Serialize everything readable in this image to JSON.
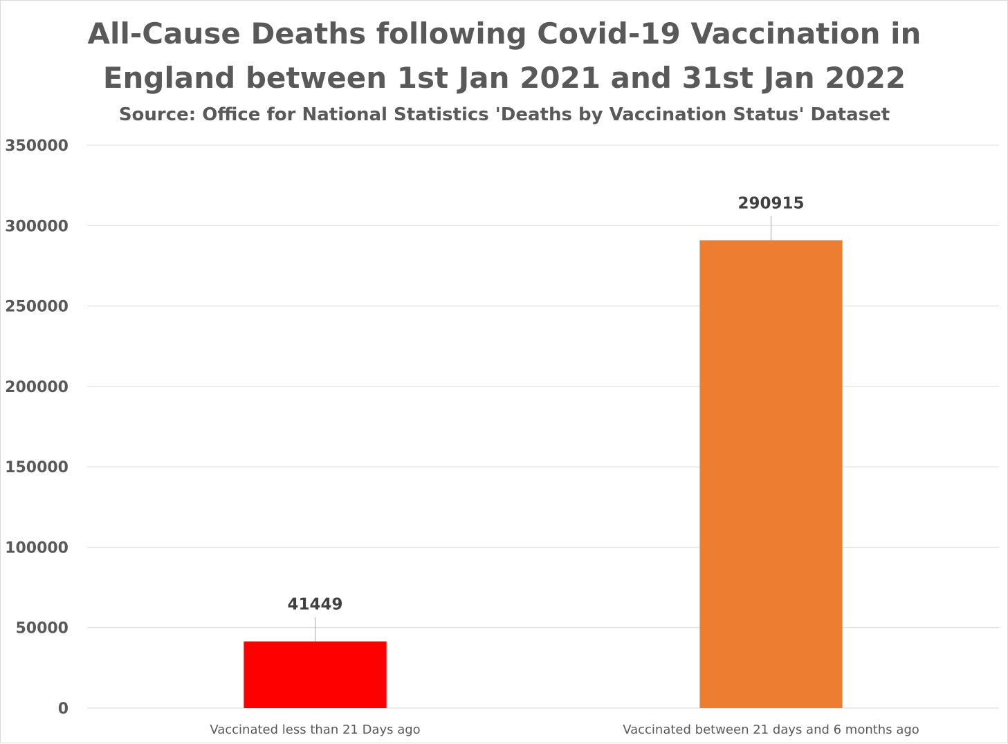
{
  "chart_data": {
    "type": "bar",
    "title_lines": [
      "All-Cause Deaths following Covid-19 Vaccination in",
      "England between 1st Jan 2021 and 31st Jan 2022"
    ],
    "subtitle": "Source: Office for National Statistics 'Deaths by Vaccination Status' Dataset",
    "categories": [
      "Vaccinated less than 21 Days ago",
      "Vaccinated between 21 days and 6 months ago"
    ],
    "values": [
      41449,
      290915
    ],
    "data_labels": [
      "41449",
      "290915"
    ],
    "colors": [
      "#ff0000",
      "#ed7d31"
    ],
    "xlabel": "",
    "ylabel": "",
    "ylim": [
      0,
      350000
    ],
    "yticks": [
      0,
      50000,
      100000,
      150000,
      200000,
      250000,
      300000,
      350000
    ],
    "ytick_labels": [
      "0",
      "50000",
      "100000",
      "150000",
      "200000",
      "250000",
      "300000",
      "350000"
    ],
    "grid": true,
    "legend": "none"
  }
}
